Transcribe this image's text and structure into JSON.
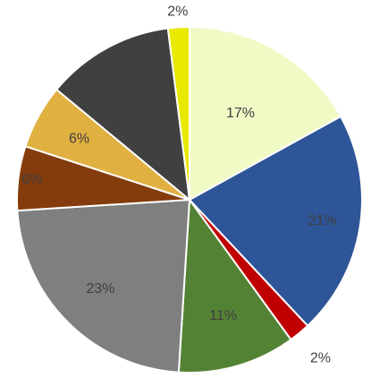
{
  "chart_data": {
    "type": "pie",
    "title": "",
    "start_angle_deg": 0,
    "direction": "clockwise",
    "slices": [
      {
        "value": 17,
        "label": "17%",
        "color": "#f0fac5"
      },
      {
        "value": 21,
        "label": "21%",
        "color": "#2e5597"
      },
      {
        "value": 2,
        "label": "2%",
        "color": "#c00000"
      },
      {
        "value": 11,
        "label": "11%",
        "color": "#548235"
      },
      {
        "value": 23,
        "label": "23%",
        "color": "#7f7f7f"
      },
      {
        "value": 6,
        "label": "6%",
        "color": "#843c0c"
      },
      {
        "value": 6,
        "label": "6%",
        "color": "#e0b040"
      },
      {
        "value": 12,
        "label": "",
        "color": "#404040"
      },
      {
        "value": 2,
        "label": "2%",
        "color": "#e8e800"
      }
    ]
  }
}
